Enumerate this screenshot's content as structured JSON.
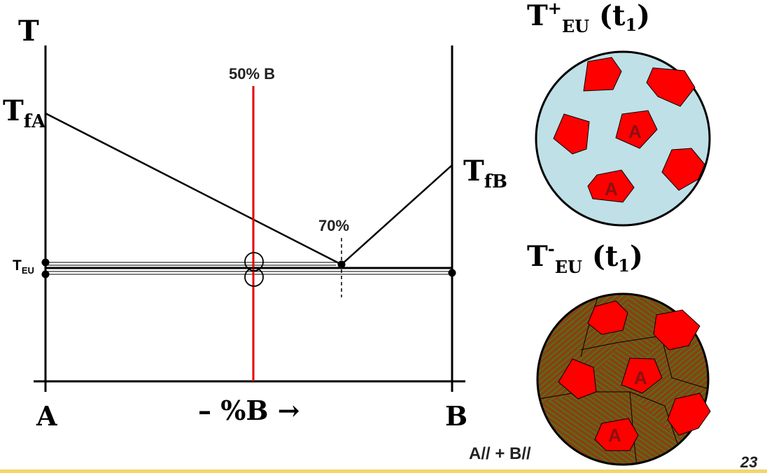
{
  "diagram": {
    "axis_T": "T",
    "label_TfA_main": "T",
    "label_TfA_sub": "fA",
    "label_TfB_main": "T",
    "label_TfB_sub": "fB",
    "label_TEU_main": "T",
    "label_TEU_sub": "EU",
    "label_A": "A",
    "label_B": "B",
    "composition_axis": "– %B →",
    "line_50": "50% B",
    "eutectic_percent": "70%"
  },
  "micro_top": {
    "title_main": "T",
    "title_sup": "+",
    "title_sub": "EU",
    "title_tail_open": " (t",
    "title_tail_sub": "1",
    "title_tail_close": ")",
    "grain_label": "A",
    "liquid_color": "#bfe0e6",
    "grain_color": "#ff0000"
  },
  "micro_bottom": {
    "title_main": "T",
    "title_sup": "-",
    "title_sub": "EU",
    "title_tail_open": " (t",
    "title_tail_sub": "1",
    "title_tail_close": ")",
    "grain_label": "A",
    "matrix_label": "A// + B//",
    "matrix_color": "#7a4a12",
    "grain_color": "#ff0000"
  },
  "page_number": "23"
}
